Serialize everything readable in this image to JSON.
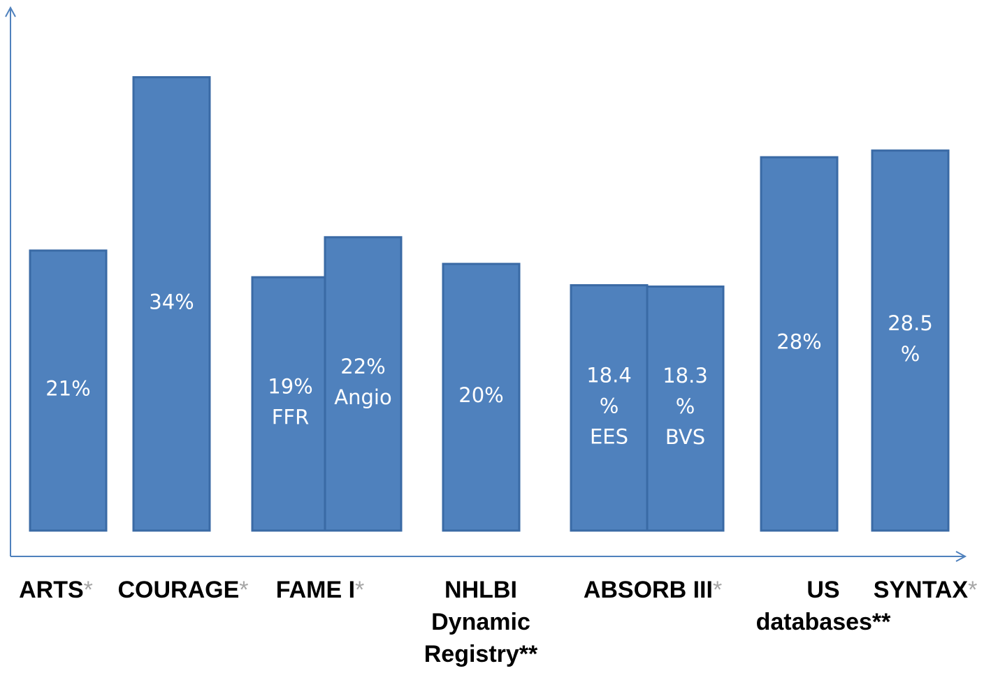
{
  "chart_data": {
    "type": "bar",
    "title": "",
    "xlabel": "",
    "ylabel": "",
    "ylim": [
      0,
      38
    ],
    "grid": false,
    "legend": "none",
    "bar_color": "#4f81bd",
    "categories": [
      {
        "name": "ARTS",
        "name_lines": [
          "ARTS"
        ],
        "marker": "*",
        "marker_color": "#a6a6a6",
        "bars": [
          {
            "value": 21,
            "label_lines": [
              "21%"
            ]
          }
        ]
      },
      {
        "name": "COURAGE",
        "name_lines": [
          "COURAGE"
        ],
        "marker": "*",
        "marker_color": "#a6a6a6",
        "bars": [
          {
            "value": 34,
            "label_lines": [
              "34%"
            ]
          }
        ]
      },
      {
        "name": "FAME I",
        "name_lines": [
          "FAME I"
        ],
        "marker": "*",
        "marker_color": "#a6a6a6",
        "bars": [
          {
            "value": 19,
            "label_lines": [
              "19%",
              "FFR"
            ]
          },
          {
            "value": 22,
            "label_lines": [
              "22%",
              "Angio"
            ]
          }
        ]
      },
      {
        "name": "NHLBI Dynamic Registry**",
        "name_lines": [
          "NHLBI",
          "Dynamic",
          "Registry**"
        ],
        "marker": "",
        "marker_color": "#000000",
        "bars": [
          {
            "value": 20,
            "label_lines": [
              "20%"
            ]
          }
        ]
      },
      {
        "name": "ABSORB III",
        "name_lines": [
          "ABSORB III"
        ],
        "marker": "*",
        "marker_color": "#a6a6a6",
        "bars": [
          {
            "value": 18.4,
            "label_lines": [
              "18.4",
              "%",
              "EES"
            ]
          },
          {
            "value": 18.3,
            "label_lines": [
              "18.3",
              "%",
              "BVS"
            ]
          }
        ]
      },
      {
        "name": "US databases**",
        "name_lines": [
          "US",
          "databases**"
        ],
        "marker": "",
        "marker_color": "#000000",
        "bars": [
          {
            "value": 28,
            "label_lines": [
              "28%"
            ]
          }
        ]
      },
      {
        "name": "SYNTAX",
        "name_lines": [
          "SYNTAX"
        ],
        "marker": "*",
        "marker_color": "#a6a6a6",
        "bars": [
          {
            "value": 28.5,
            "label_lines": [
              "28.5",
              "%"
            ]
          }
        ]
      }
    ]
  }
}
